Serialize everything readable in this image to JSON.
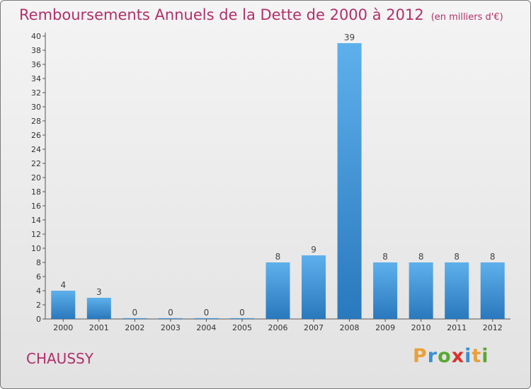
{
  "title": "Remboursements Annuels de la Dette de 2000 à 2012",
  "unit": "(en milliers d'€)",
  "town": "CHAUSSY",
  "logo": {
    "text": "Proxiti",
    "letters": [
      {
        "ch": "P",
        "color": "#e8a13a"
      },
      {
        "ch": "r",
        "color": "#3a8fd6"
      },
      {
        "ch": "o",
        "color": "#5aa832"
      },
      {
        "ch": "x",
        "color": "#d9322a"
      },
      {
        "ch": "i",
        "color": "#3a8fd6"
      },
      {
        "ch": "t",
        "color": "#e8a13a"
      },
      {
        "ch": "i",
        "color": "#5aa832"
      }
    ]
  },
  "colors": {
    "bar": "#3f96dc",
    "bar_dark": "#2a78bd",
    "accent": "#b0306a"
  },
  "chart_data": {
    "type": "bar",
    "title": "Remboursements Annuels de la Dette de 2000 à 2012",
    "subtitle": "(en milliers d'€)",
    "xlabel": "",
    "ylabel": "",
    "categories": [
      "2000",
      "2001",
      "2002",
      "2003",
      "2004",
      "2005",
      "2006",
      "2007",
      "2008",
      "2009",
      "2010",
      "2011",
      "2012"
    ],
    "values": [
      4,
      3,
      0,
      0,
      0,
      0,
      8,
      9,
      39,
      8,
      8,
      8,
      8
    ],
    "ylim": [
      0,
      40
    ],
    "yticks": [
      0,
      2,
      4,
      6,
      8,
      10,
      12,
      14,
      16,
      18,
      20,
      22,
      24,
      26,
      28,
      30,
      32,
      34,
      36,
      38,
      40
    ],
    "grid": false,
    "legend": "none"
  }
}
